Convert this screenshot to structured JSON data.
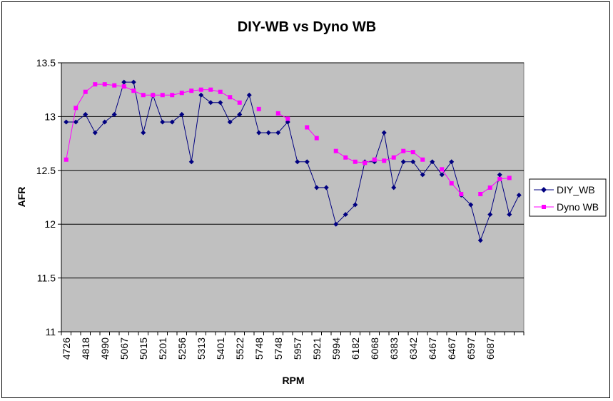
{
  "chart_data": {
    "type": "line",
    "title": "DIY-WB vs Dyno WB",
    "xlabel": "RPM",
    "ylabel": "AFR",
    "ylim": [
      11,
      13.5
    ],
    "ytick_step": 0.5,
    "grid": true,
    "legend_position": "right",
    "x_tick_labels": [
      "4726",
      "4818",
      "4990",
      "5067",
      "5015",
      "5201",
      "5256",
      "5313",
      "5401",
      "5522",
      "5748",
      "5748",
      "5957",
      "5921",
      "5994",
      "6182",
      "6068",
      "6383",
      "6342",
      "6467",
      "6467",
      "6597",
      "6687"
    ],
    "ytick_labels": [
      "11",
      "11.5",
      "12",
      "12.5",
      "13",
      "13.5"
    ],
    "colors": {
      "plot_bg": "#c0c0c0",
      "diy": "#000080",
      "dyno": "#ff00ff"
    },
    "series": [
      {
        "name": "DIY_WB",
        "marker": "diamond",
        "values": [
          12.95,
          12.95,
          13.02,
          12.85,
          12.95,
          13.02,
          13.32,
          13.32,
          12.85,
          13.2,
          12.95,
          12.95,
          13.02,
          12.58,
          13.2,
          13.13,
          13.13,
          12.95,
          13.02,
          13.2,
          12.85,
          12.85,
          12.85,
          12.95,
          12.58,
          12.58,
          12.34,
          12.34,
          12.0,
          12.09,
          12.18,
          12.58,
          12.58,
          12.85,
          12.34,
          12.58,
          12.58,
          12.46,
          12.58,
          12.46,
          12.58,
          12.27,
          12.18,
          11.85,
          12.09,
          12.46,
          12.09,
          12.27
        ]
      },
      {
        "name": "Dyno WB",
        "marker": "square",
        "values": [
          12.6,
          13.08,
          13.23,
          13.3,
          13.3,
          13.29,
          13.28,
          13.24,
          13.2,
          13.2,
          13.2,
          13.2,
          13.22,
          13.24,
          13.25,
          13.25,
          13.23,
          13.18,
          13.13,
          null,
          13.07,
          null,
          13.03,
          12.98,
          null,
          12.9,
          12.8,
          null,
          12.68,
          12.62,
          12.58,
          12.57,
          12.6,
          12.59,
          12.62,
          12.68,
          12.67,
          12.6,
          null,
          12.51,
          12.38,
          12.28,
          null,
          12.28,
          12.34,
          12.42,
          12.43,
          null
        ]
      }
    ]
  }
}
